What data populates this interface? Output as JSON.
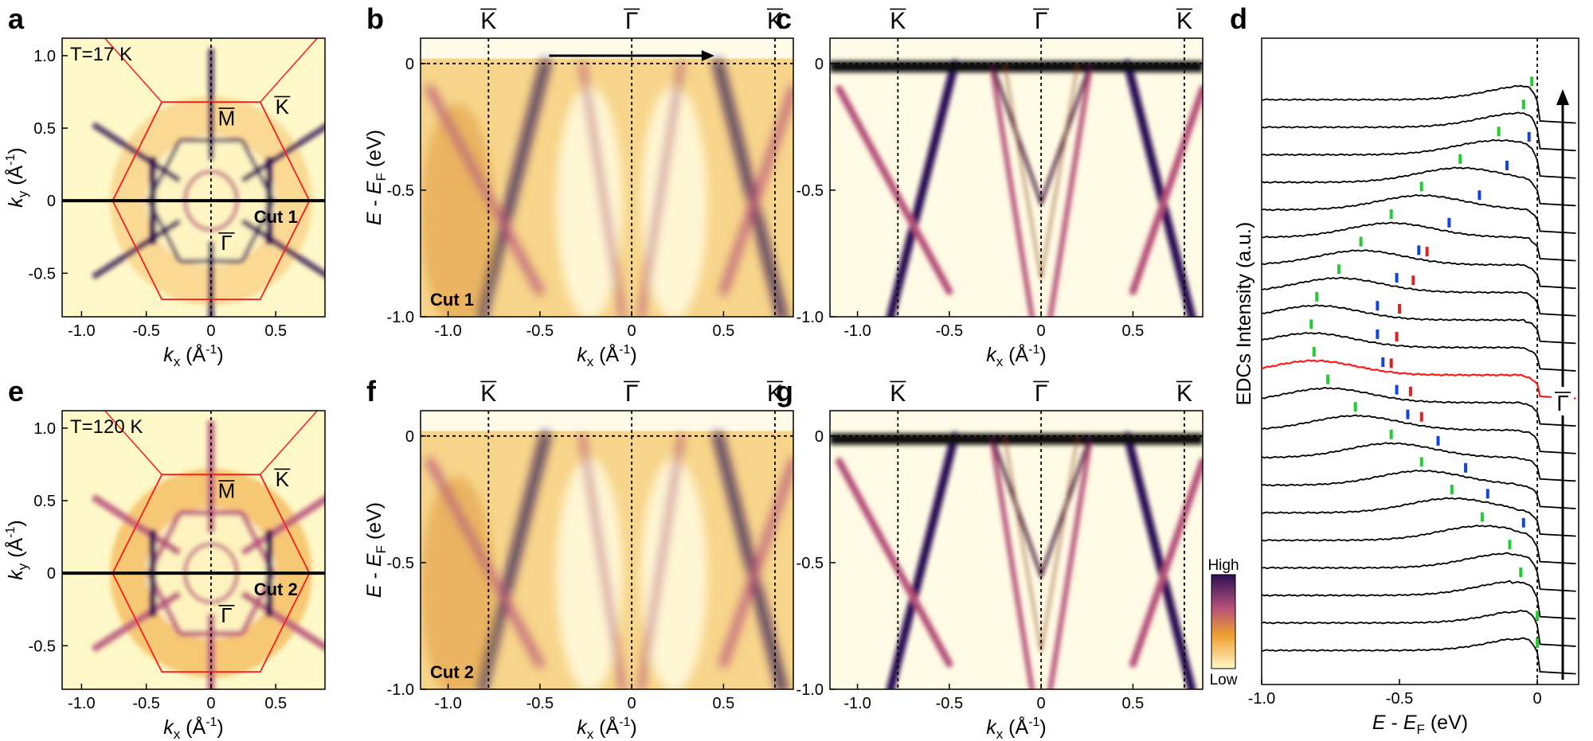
{
  "figure": {
    "description_free": true,
    "colors": {
      "map_high": "#2b0f54",
      "map_mid": "#b5507a",
      "map_mid2": "#f0a030",
      "map_low": "#fff8c8",
      "bz_line": "#ff1a1a",
      "edc_highlight": "#ff1a1a",
      "marker_green": "#22cc33",
      "marker_blue": "#1144dd",
      "marker_red": "#dd2222"
    }
  },
  "chart_data": [
    {
      "id": "a",
      "type": "heatmap",
      "panel_label": "a",
      "annotation": "T=17 K",
      "cut_label": "Cut 1",
      "point_labels": {
        "M": "M",
        "K": "K",
        "G": "Γ"
      },
      "xlabel_main": "k",
      "xlabel_sub": "x",
      "xlabel_unit": " (Å",
      "xlabel_sup": "-1",
      "xlabel_close": ")",
      "ylabel_main": "k",
      "ylabel_sub": "y",
      "ylabel_unit": " (Å",
      "ylabel_sup": "-1",
      "ylabel_close": ")",
      "xlim": [
        -1.15,
        0.88
      ],
      "ylim": [
        -0.8,
        1.12
      ],
      "xticks": [
        -1.0,
        -0.5,
        0,
        0.5
      ],
      "xtick_labels": [
        "-1.0",
        "-0.5",
        "0",
        "0.5"
      ],
      "yticks": [
        -0.5,
        0,
        0.5,
        1.0
      ],
      "ytick_labels": [
        "-0.5",
        "0",
        "0.5",
        "1.0"
      ],
      "cut_ky": 0
    },
    {
      "id": "b",
      "type": "heatmap",
      "panel_label": "b",
      "cut_label": "Cut 1",
      "top_labels": [
        "K",
        "Γ",
        "K"
      ],
      "top_label_k": [
        -0.78,
        0,
        0.78
      ],
      "xlabel_main": "k",
      "xlabel_sub": "x",
      "xlabel_unit": " (Å",
      "xlabel_sup": "-1",
      "xlabel_close": ")",
      "ylabel_main": "E",
      "ylabel_dash": " - ",
      "ylabel_e2": "E",
      "ylabel_sub": "F",
      "ylabel_unit": " (eV)",
      "xlim": [
        -1.15,
        0.88
      ],
      "ylim": [
        -1.0,
        0.1
      ],
      "xticks": [
        -1.0,
        -0.5,
        0,
        0.5
      ],
      "xtick_labels": [
        "-1.0",
        "-0.5",
        "0",
        "0.5"
      ],
      "yticks": [
        0,
        -0.5,
        -1.0
      ],
      "ytick_labels": [
        "0",
        "-0.5",
        "-1.0"
      ],
      "arrow_from_k": -0.45,
      "arrow_to_k": 0.45
    },
    {
      "id": "c",
      "type": "heatmap",
      "panel_label": "c",
      "top_labels": [
        "K",
        "Γ",
        "K"
      ],
      "top_label_k": [
        -0.78,
        0,
        0.78
      ],
      "xlabel_main": "k",
      "xlabel_sub": "x",
      "xlabel_unit": " (Å",
      "xlabel_sup": "-1",
      "xlabel_close": ")",
      "xlim": [
        -1.15,
        0.88
      ],
      "ylim": [
        -1.0,
        0.1
      ],
      "xticks": [
        -1.0,
        -0.5,
        0,
        0.5
      ],
      "xtick_labels": [
        "-1.0",
        "-0.5",
        "0",
        "0.5"
      ],
      "yticks": [
        0,
        -0.5,
        -1.0
      ],
      "ytick_labels": [
        "0",
        "-0.5",
        "-1.0"
      ]
    },
    {
      "id": "e",
      "type": "heatmap",
      "panel_label": "e",
      "annotation": "T=120 K",
      "cut_label": "Cut 2",
      "point_labels": {
        "M": "M",
        "K": "K",
        "G": "Γ"
      },
      "xlabel_main": "k",
      "xlabel_sub": "x",
      "xlabel_unit": " (Å",
      "xlabel_sup": "-1",
      "xlabel_close": ")",
      "ylabel_main": "k",
      "ylabel_sub": "y",
      "ylabel_unit": " (Å",
      "ylabel_sup": "-1",
      "ylabel_close": ")",
      "xlim": [
        -1.15,
        0.88
      ],
      "ylim": [
        -0.8,
        1.12
      ],
      "xticks": [
        -1.0,
        -0.5,
        0,
        0.5
      ],
      "xtick_labels": [
        "-1.0",
        "-0.5",
        "0",
        "0.5"
      ],
      "yticks": [
        -0.5,
        0,
        0.5,
        1.0
      ],
      "ytick_labels": [
        "-0.5",
        "0",
        "0.5",
        "1.0"
      ],
      "cut_ky": 0
    },
    {
      "id": "f",
      "type": "heatmap",
      "panel_label": "f",
      "cut_label": "Cut 2",
      "top_labels": [
        "K",
        "Γ",
        "K"
      ],
      "top_label_k": [
        -0.78,
        0,
        0.78
      ],
      "xlabel_main": "k",
      "xlabel_sub": "x",
      "xlabel_unit": " (Å",
      "xlabel_sup": "-1",
      "xlabel_close": ")",
      "ylabel_main": "E",
      "ylabel_dash": " - ",
      "ylabel_e2": "E",
      "ylabel_sub": "F",
      "ylabel_unit": " (eV)",
      "xlim": [
        -1.15,
        0.88
      ],
      "ylim": [
        -1.0,
        0.1
      ],
      "xticks": [
        -1.0,
        -0.5,
        0,
        0.5
      ],
      "xtick_labels": [
        "-1.0",
        "-0.5",
        "0",
        "0.5"
      ],
      "yticks": [
        0,
        -0.5,
        -1.0
      ],
      "ytick_labels": [
        "0",
        "-0.5",
        "-1.0"
      ]
    },
    {
      "id": "g",
      "type": "heatmap",
      "panel_label": "g",
      "top_labels": [
        "K",
        "Γ",
        "K"
      ],
      "top_label_k": [
        -0.78,
        0,
        0.78
      ],
      "xlabel_main": "k",
      "xlabel_sub": "x",
      "xlabel_unit": " (Å",
      "xlabel_sup": "-1",
      "xlabel_close": ")",
      "xlim": [
        -1.15,
        0.88
      ],
      "ylim": [
        -1.0,
        0.1
      ],
      "xticks": [
        -1.0,
        -0.5,
        0,
        0.5
      ],
      "xtick_labels": [
        "-1.0",
        "-0.5",
        "0",
        "0.5"
      ],
      "yticks": [
        0,
        -0.5,
        -1.0
      ],
      "ytick_labels": [
        "0",
        "-0.5",
        "-1.0"
      ]
    },
    {
      "id": "colorbar",
      "type": "colorbar",
      "high_label": "High",
      "low_label": "Low"
    },
    {
      "id": "d",
      "type": "line",
      "panel_label": "d",
      "xlabel_main": "E",
      "xlabel_dash": " - ",
      "xlabel_e2": "E",
      "xlabel_sub": "F",
      "xlabel_unit": " (eV)",
      "ylabel": "EDCs Intensity (a.u.)",
      "xlim": [
        -1.0,
        0.15
      ],
      "xticks": [
        -1.0,
        -0.5,
        0
      ],
      "xtick_labels": [
        "-1.0",
        "-0.5",
        "0"
      ],
      "gamma_label": "Γ",
      "n_curves": 21,
      "highlight_index": 10,
      "green_peaks": [
        -0.02,
        -0.05,
        -0.14,
        -0.28,
        -0.42,
        -0.53,
        -0.64,
        -0.72,
        -0.8,
        -0.82,
        -0.81,
        -0.76,
        -0.66,
        -0.53,
        -0.42,
        -0.31,
        -0.2,
        -0.1,
        -0.06,
        0.0,
        0.0
      ],
      "blue_peaks": [
        null,
        null,
        -0.03,
        -0.11,
        -0.21,
        -0.32,
        -0.43,
        -0.51,
        -0.58,
        -0.58,
        -0.56,
        -0.51,
        -0.47,
        -0.36,
        -0.26,
        -0.18,
        -0.05,
        null,
        null,
        null,
        null
      ],
      "red_peaks": [
        null,
        null,
        null,
        null,
        null,
        null,
        -0.4,
        -0.45,
        -0.5,
        -0.51,
        -0.53,
        -0.46,
        -0.42,
        null,
        null,
        null,
        null,
        null,
        null,
        null,
        null
      ]
    }
  ]
}
